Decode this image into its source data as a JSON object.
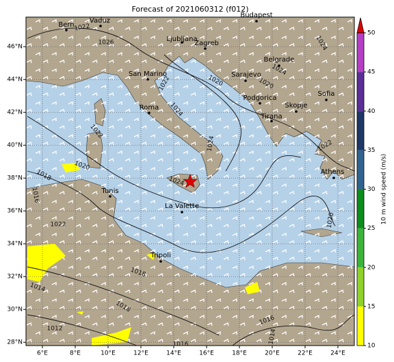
{
  "title": "Forecast of 2021060312 (f012)",
  "lon_ticks": [
    {
      "value": 6,
      "label": "6°E"
    },
    {
      "value": 8,
      "label": "8°E"
    },
    {
      "value": 10,
      "label": "10°E"
    },
    {
      "value": 12,
      "label": "12°E"
    },
    {
      "value": 14,
      "label": "14°E"
    },
    {
      "value": 16,
      "label": "16°E"
    },
    {
      "value": 18,
      "label": "18°E"
    },
    {
      "value": 20,
      "label": "20°E"
    },
    {
      "value": 22,
      "label": "22°E"
    },
    {
      "value": 24,
      "label": "24°E"
    }
  ],
  "lat_ticks": [
    {
      "value": 28,
      "label": "28°N"
    },
    {
      "value": 30,
      "label": "30°N"
    },
    {
      "value": 32,
      "label": "32°N"
    },
    {
      "value": 34,
      "label": "34°N"
    },
    {
      "value": 36,
      "label": "36°N"
    },
    {
      "value": 38,
      "label": "38°N"
    },
    {
      "value": 40,
      "label": "40°N"
    },
    {
      "value": 42,
      "label": "42°N"
    },
    {
      "value": 44,
      "label": "44°N"
    },
    {
      "value": 46,
      "label": "46°N"
    }
  ],
  "cities": [
    {
      "name": "Bern"
    },
    {
      "name": "Vaduz"
    },
    {
      "name": "Budapest"
    },
    {
      "name": "Ljubljana"
    },
    {
      "name": "Zagreb"
    },
    {
      "name": "Belgrade"
    },
    {
      "name": "San Marino"
    },
    {
      "name": "Sarajevo"
    },
    {
      "name": "Podgorica"
    },
    {
      "name": "Skopje"
    },
    {
      "name": "Sofia"
    },
    {
      "name": "Roma"
    },
    {
      "name": "Tirana"
    },
    {
      "name": "Athens"
    },
    {
      "name": "Tunis"
    },
    {
      "name": "La Valette"
    },
    {
      "name": "Tripoli"
    }
  ],
  "isobar_labels": [
    "1022",
    "1026",
    "1024",
    "1024",
    "1020",
    "1022",
    "1020",
    "1024",
    "1022",
    "1020",
    "1018",
    "1016",
    "1022",
    "1024",
    "1024",
    "1020",
    "1022",
    "1018",
    "1014",
    "1018",
    "1012",
    "1016",
    "1014",
    "1016"
  ],
  "colorbar": {
    "label": "10 m wind speed (m/s)",
    "range": [
      10,
      50
    ],
    "ticks": [
      10,
      15,
      20,
      25,
      30,
      35,
      40,
      45,
      50
    ],
    "colors": [
      "#ffff00",
      "#8fd22a",
      "#3cb43c",
      "#0f8c1e",
      "#31638f",
      "#1f3766",
      "#5b2f96",
      "#b43fc4"
    ],
    "extend_color": "#e00000"
  }
}
